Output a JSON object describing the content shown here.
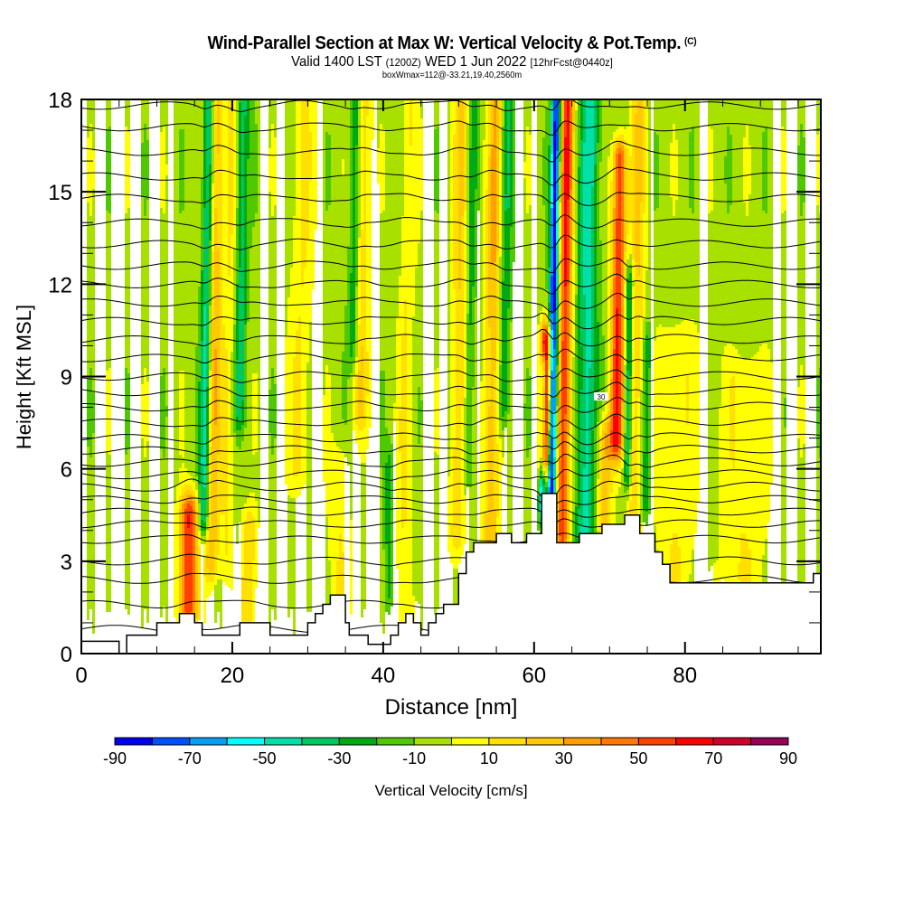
{
  "header": {
    "title": "Wind-Parallel Section at Max W: Vertical Velocity & Pot.Temp.",
    "copyright": "(C)",
    "valid_prefix": "Valid 1400 LST",
    "valid_utc": "(1200Z)",
    "valid_date": "WED 1 Jun 2022",
    "forecast": "[12hrFcst@0440z]",
    "box_info": "boxWmax=112@-33.21,19.40,2560m"
  },
  "chart_data": {
    "type": "heatmap",
    "title": "Wind-Parallel Section at Max W: Vertical Velocity & Pot.Temp.",
    "xlabel": "Distance [nm]",
    "ylabel": "Height [Kft MSL]",
    "xlim": [
      0,
      98
    ],
    "ylim": [
      0,
      18
    ],
    "x_ticks": [
      "0",
      "20",
      "40",
      "60",
      "80"
    ],
    "x_tick_values": [
      0,
      20,
      40,
      60,
      80
    ],
    "y_ticks": [
      "0",
      "3",
      "6",
      "9",
      "12",
      "15",
      "18"
    ],
    "y_tick_values": [
      0,
      3,
      6,
      9,
      12,
      15,
      18
    ],
    "x_minor_step": 5,
    "y_minor_step": 1,
    "colorbar": {
      "label": "Vertical Velocity [cm/s]",
      "placement": "bottom",
      "bounds": [
        -90,
        -80,
        -70,
        -60,
        -50,
        -40,
        -30,
        -20,
        -10,
        0,
        10,
        20,
        30,
        40,
        50,
        60,
        70,
        80,
        90
      ],
      "tick_labels": [
        "-90",
        "-70",
        "-50",
        "-30",
        "-10",
        "10",
        "30",
        "50",
        "70",
        "90"
      ],
      "tick_values": [
        -90,
        -70,
        -50,
        -30,
        -10,
        10,
        30,
        50,
        70,
        90
      ],
      "colors": [
        "#0000f0",
        "#0050ff",
        "#00a0f8",
        "#00ffff",
        "#00e0a8",
        "#00c860",
        "#00aa14",
        "#50c800",
        "#a8e000",
        "#ffff00",
        "#ffe000",
        "#ffc800",
        "#ffa000",
        "#ff7800",
        "#ff4000",
        "#ff0000",
        "#d00028",
        "#980058"
      ]
    },
    "background_w": -5,
    "updraft_bands": [
      {
        "x": 14.5,
        "y_bottom": 1.5,
        "y_top": 4.5,
        "w": 65,
        "width": 1.2
      },
      {
        "x": 17.5,
        "y_bottom": 3.0,
        "y_top": 18,
        "w": 35,
        "width": 0.9
      },
      {
        "x": 19.5,
        "y_bottom": 3.0,
        "y_top": 18,
        "w": 15,
        "width": 1.0
      },
      {
        "x": 22.5,
        "y_bottom": 1.0,
        "y_top": 4.0,
        "w": 25,
        "width": 1.0
      },
      {
        "x": 29.0,
        "y_bottom": 6.0,
        "y_top": 18,
        "w": 15,
        "width": 1.5
      },
      {
        "x": 34.5,
        "y_bottom": 2.0,
        "y_top": 6.0,
        "w": 15,
        "width": 1.5
      },
      {
        "x": 37.0,
        "y_bottom": 8.0,
        "y_top": 18,
        "w": 25,
        "width": 1.0
      },
      {
        "x": 43.0,
        "y_bottom": 0.5,
        "y_top": 18,
        "w": 15,
        "width": 1.0
      },
      {
        "x": 50.0,
        "y_bottom": 4.0,
        "y_top": 18,
        "w": 25,
        "width": 1.0
      },
      {
        "x": 54.5,
        "y_bottom": 3.0,
        "y_top": 18,
        "w": 35,
        "width": 1.0
      },
      {
        "x": 61.5,
        "y_bottom": 6.5,
        "y_top": 10.0,
        "w": 85,
        "width": 0.7
      },
      {
        "x": 64.0,
        "y_bottom": 4.0,
        "y_top": 18,
        "w": 65,
        "width": 0.9
      },
      {
        "x": 71.0,
        "y_bottom": 7.0,
        "y_top": 16.0,
        "w": 65,
        "width": 0.9
      },
      {
        "x": 69.5,
        "y_bottom": 4.5,
        "y_top": 7.0,
        "w": 35,
        "width": 1.0
      },
      {
        "x": 73.5,
        "y_bottom": 4.0,
        "y_top": 18,
        "w": 25,
        "width": 1.0
      },
      {
        "x": 79.0,
        "y_bottom": 2.5,
        "y_top": 10.0,
        "w": 15,
        "width": 2.5
      },
      {
        "x": 88.0,
        "y_bottom": 2.5,
        "y_top": 9.0,
        "w": 15,
        "width": 3.0
      }
    ],
    "downdraft_bands": [
      {
        "x": 16.5,
        "y_bottom": 4.5,
        "y_top": 18,
        "w": -45,
        "width": 0.7
      },
      {
        "x": 21.0,
        "y_bottom": 8.0,
        "y_top": 18,
        "w": -30,
        "width": 0.8
      },
      {
        "x": 36.0,
        "y_bottom": 10.0,
        "y_top": 18,
        "w": -25,
        "width": 0.8
      },
      {
        "x": 41.0,
        "y_bottom": 2.0,
        "y_top": 6.0,
        "w": -20,
        "width": 0.6
      },
      {
        "x": 51.5,
        "y_bottom": 6.0,
        "y_top": 18,
        "w": -20,
        "width": 0.6
      },
      {
        "x": 56.0,
        "y_bottom": 8.0,
        "y_top": 18,
        "w": -25,
        "width": 0.8
      },
      {
        "x": 62.5,
        "y_bottom": 5.0,
        "y_top": 18,
        "w": -85,
        "width": 0.6
      },
      {
        "x": 61.2,
        "y_bottom": 5.0,
        "y_top": 9.0,
        "w": -60,
        "width": 0.4
      },
      {
        "x": 67.0,
        "y_bottom": 4.0,
        "y_top": 18,
        "w": -40,
        "width": 1.3
      },
      {
        "x": 72.5,
        "y_bottom": 6.0,
        "y_top": 12.0,
        "w": -40,
        "width": 0.5
      },
      {
        "x": 75.0,
        "y_bottom": 5.0,
        "y_top": 10.0,
        "w": -25,
        "width": 0.6
      }
    ],
    "terrain_profile_kft": {
      "x": [
        0,
        5,
        5,
        6,
        6,
        10,
        10,
        13,
        13,
        15,
        15,
        16,
        16,
        21,
        21,
        25,
        25,
        30,
        30,
        31,
        31,
        32,
        32,
        33,
        33,
        35,
        35,
        35.5,
        35.5,
        38,
        38,
        41,
        41,
        42,
        42,
        43,
        43,
        44,
        44,
        45,
        45,
        46,
        46,
        47,
        47,
        48,
        48,
        50,
        50,
        51,
        51,
        52,
        52,
        55,
        55,
        57,
        57,
        59,
        59,
        61,
        61,
        63,
        63,
        66,
        66,
        69,
        69,
        72,
        72,
        74,
        74,
        76,
        76,
        77,
        77,
        78,
        78,
        97,
        97,
        98
      ],
      "y": [
        0.4,
        0.4,
        0.0,
        0.0,
        0.6,
        0.6,
        1.0,
        1.0,
        1.3,
        1.3,
        1.0,
        1.0,
        0.6,
        0.6,
        1.0,
        1.0,
        0.6,
        0.6,
        1.0,
        1.0,
        1.3,
        1.3,
        1.6,
        1.6,
        1.9,
        1.9,
        1.0,
        1.0,
        0.6,
        0.6,
        0.3,
        0.3,
        0.6,
        0.6,
        1.0,
        1.0,
        1.3,
        1.3,
        1.0,
        1.0,
        0.6,
        0.6,
        1.0,
        1.0,
        1.3,
        1.3,
        1.6,
        1.6,
        2.6,
        2.6,
        3.3,
        3.3,
        3.6,
        3.6,
        3.9,
        3.9,
        3.6,
        3.6,
        3.9,
        3.9,
        5.2,
        5.2,
        3.6,
        3.6,
        3.9,
        3.9,
        4.2,
        4.2,
        4.5,
        4.5,
        3.9,
        3.9,
        3.3,
        3.3,
        2.9,
        2.9,
        2.3,
        2.3,
        2.6,
        2.6
      ]
    },
    "isentropes": {
      "label": "Pot.Temp. contours",
      "base_heights_kft": [
        0.8,
        1.6,
        2.4,
        3.0,
        3.7,
        4.2,
        4.6,
        5.0,
        5.4,
        5.8,
        6.2,
        6.6,
        7.0,
        7.5,
        8.0,
        8.5,
        9.0,
        9.6,
        10.2,
        10.8,
        11.4,
        12.0,
        12.6,
        13.3,
        14.0,
        14.8,
        15.5,
        16.3,
        17.1,
        17.8
      ],
      "label_values": [
        "30"
      ]
    }
  },
  "x_axis_label": "Distance [nm]",
  "y_axis_label": "Height [Kft MSL]",
  "colorbar_label": "Vertical Velocity [cm/s]"
}
